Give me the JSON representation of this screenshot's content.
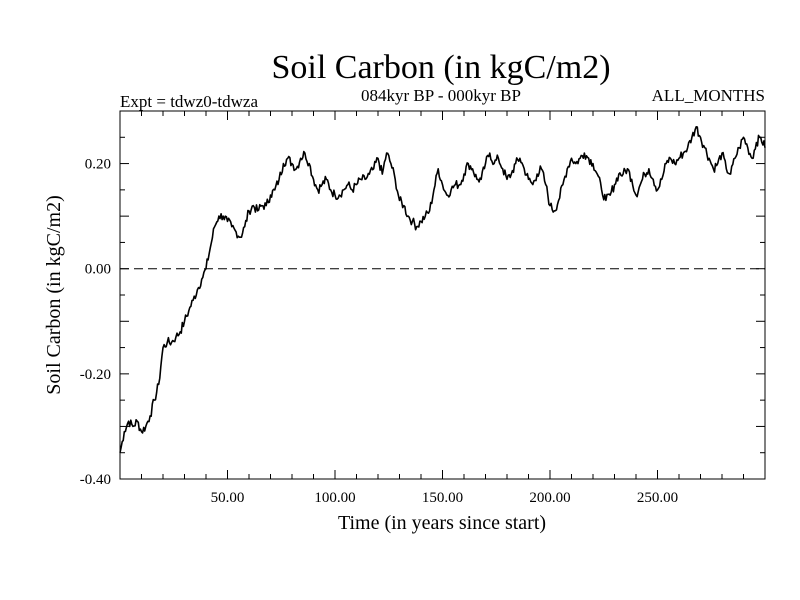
{
  "chart_data": {
    "type": "line",
    "title": "Soil Carbon (in kgC/m2)",
    "subtitle_left": "Expt = tdwz0-tdwza",
    "subtitle_center": "084kyr BP - 000kyr BP",
    "subtitle_right": "ALL_MONTHS",
    "xlabel": "Time (in years since start)",
    "ylabel": "Soil Carbon (in kgC/m2)",
    "xlim": [
      0,
      300
    ],
    "ylim": [
      -0.4,
      0.3
    ],
    "x_ticks": [
      {
        "value": 50,
        "label": "50.00"
      },
      {
        "value": 100,
        "label": "100.00"
      },
      {
        "value": 150,
        "label": "150.00"
      },
      {
        "value": 200,
        "label": "200.00"
      },
      {
        "value": 250,
        "label": "250.00"
      }
    ],
    "y_ticks": [
      {
        "value": -0.4,
        "label": "-0.40"
      },
      {
        "value": -0.2,
        "label": "-0.20"
      },
      {
        "value": 0.0,
        "label": "0.00"
      },
      {
        "value": 0.2,
        "label": "0.20"
      }
    ],
    "reference_line": {
      "value": 0.0,
      "style": "dashed"
    },
    "series": [
      {
        "name": "Soil Carbon",
        "color": "#000000",
        "x": [
          0,
          2,
          4,
          6,
          8,
          10,
          12,
          14,
          16,
          18,
          20,
          22,
          24,
          26,
          28,
          30,
          32,
          34,
          36,
          38,
          40,
          42,
          44,
          46,
          48,
          50,
          52,
          54,
          56,
          58,
          60,
          62,
          64,
          66,
          68,
          70,
          72,
          74,
          76,
          78,
          80,
          82,
          84,
          86,
          88,
          90,
          92,
          94,
          96,
          98,
          100,
          102,
          104,
          106,
          108,
          110,
          112,
          114,
          116,
          118,
          120,
          122,
          124,
          126,
          128,
          130,
          132,
          134,
          136,
          138,
          140,
          142,
          144,
          146,
          148,
          150,
          152,
          154,
          156,
          158,
          160,
          162,
          164,
          166,
          168,
          170,
          172,
          174,
          176,
          178,
          180,
          182,
          184,
          186,
          188,
          190,
          192,
          194,
          196,
          198,
          200,
          202,
          204,
          206,
          208,
          210,
          212,
          214,
          216,
          218,
          220,
          222,
          224,
          226,
          228,
          230,
          232,
          234,
          236,
          238,
          240,
          242,
          244,
          246,
          248,
          250,
          252,
          254,
          256,
          258,
          260,
          262,
          264,
          266,
          268,
          270,
          272,
          274,
          276,
          278,
          280,
          282,
          284,
          286,
          288,
          290,
          292,
          294,
          296,
          298,
          300
        ],
        "values": [
          -0.35,
          -0.31,
          -0.29,
          -0.3,
          -0.29,
          -0.31,
          -0.3,
          -0.28,
          -0.25,
          -0.22,
          -0.15,
          -0.14,
          -0.14,
          -0.13,
          -0.12,
          -0.1,
          -0.08,
          -0.06,
          -0.04,
          -0.02,
          0.0,
          0.04,
          0.08,
          0.1,
          0.1,
          0.09,
          0.08,
          0.07,
          0.06,
          0.08,
          0.11,
          0.12,
          0.11,
          0.12,
          0.12,
          0.14,
          0.15,
          0.17,
          0.2,
          0.21,
          0.2,
          0.19,
          0.21,
          0.22,
          0.2,
          0.17,
          0.15,
          0.16,
          0.17,
          0.15,
          0.14,
          0.14,
          0.15,
          0.16,
          0.15,
          0.16,
          0.17,
          0.17,
          0.18,
          0.19,
          0.21,
          0.18,
          0.22,
          0.2,
          0.17,
          0.13,
          0.12,
          0.1,
          0.09,
          0.08,
          0.09,
          0.1,
          0.11,
          0.15,
          0.19,
          0.16,
          0.14,
          0.15,
          0.16,
          0.16,
          0.18,
          0.2,
          0.19,
          0.17,
          0.17,
          0.2,
          0.22,
          0.2,
          0.21,
          0.19,
          0.17,
          0.18,
          0.2,
          0.21,
          0.19,
          0.17,
          0.16,
          0.18,
          0.19,
          0.16,
          0.12,
          0.11,
          0.13,
          0.16,
          0.19,
          0.21,
          0.2,
          0.21,
          0.22,
          0.21,
          0.2,
          0.18,
          0.15,
          0.13,
          0.14,
          0.16,
          0.18,
          0.18,
          0.19,
          0.17,
          0.14,
          0.16,
          0.18,
          0.19,
          0.17,
          0.15,
          0.17,
          0.2,
          0.21,
          0.2,
          0.21,
          0.22,
          0.23,
          0.25,
          0.27,
          0.25,
          0.23,
          0.21,
          0.19,
          0.2,
          0.22,
          0.19,
          0.18,
          0.21,
          0.23,
          0.25,
          0.23,
          0.21,
          0.24,
          0.25,
          0.23
        ]
      }
    ]
  }
}
